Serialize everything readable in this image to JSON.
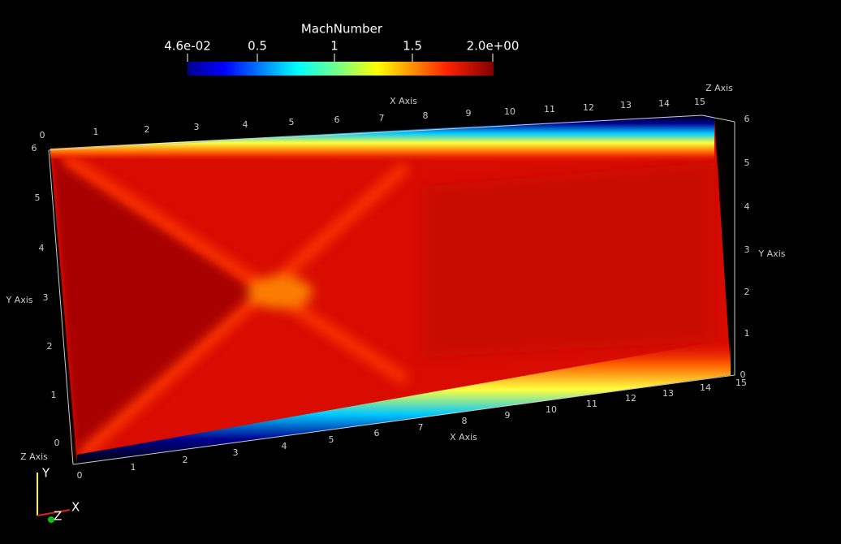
{
  "colorbar": {
    "title": "MachNumber",
    "labels": [
      "4.6e-02",
      "0.5",
      "1",
      "1.5",
      "2.0e+00"
    ]
  },
  "axes": {
    "x_top": {
      "title": "X Axis",
      "ticks": [
        "0",
        "1",
        "2",
        "3",
        "4",
        "5",
        "6",
        "7",
        "8",
        "9",
        "10",
        "11",
        "12",
        "13",
        "14",
        "15"
      ]
    },
    "x_bottom": {
      "title": "X Axis",
      "ticks": [
        "0",
        "1",
        "2",
        "3",
        "4",
        "5",
        "6",
        "7",
        "8",
        "9",
        "10",
        "11",
        "12",
        "13",
        "14",
        "15"
      ]
    },
    "y_left": {
      "title": "Y Axis",
      "ticks": [
        "0",
        "1",
        "2",
        "3",
        "4",
        "5",
        "6"
      ]
    },
    "y_right": {
      "title": "Y Axis",
      "ticks": [
        "0",
        "1",
        "2",
        "3",
        "4",
        "5",
        "6"
      ]
    },
    "z_top": {
      "title": "Z Axis"
    },
    "z_bottom": {
      "title": "Z Axis"
    }
  },
  "orientation": {
    "x": "X",
    "y": "Y",
    "z": "Z"
  }
}
